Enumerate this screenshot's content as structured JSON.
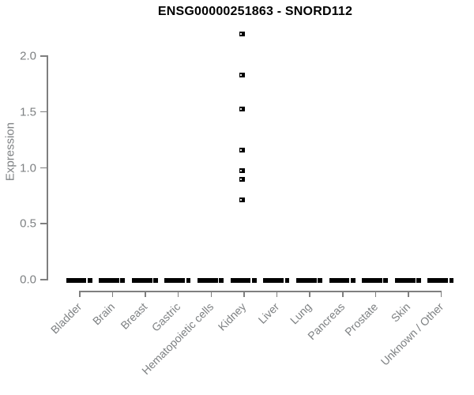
{
  "window": {
    "title": "ENSG00000251863 - SNORD112"
  },
  "chart_data": {
    "type": "boxplot",
    "title": "ENSG00000251863 - SNORD112",
    "ylabel": "Expression",
    "xlabel": "",
    "grid": false,
    "legend": "none",
    "ylim": [
      0,
      2.25
    ],
    "ytick_values": [
      0,
      0.5,
      1,
      1.5,
      2
    ],
    "ytick_labels": [
      "0.0",
      "0.5",
      "1.0",
      "1.5",
      "2.0"
    ],
    "categories": [
      "Bladder",
      "Brain",
      "Breast",
      "Gastric",
      "Hematopoietic cells",
      "Kidney",
      "Liver",
      "Lung",
      "Pancreas",
      "Prostate",
      "Skin",
      "Unknown / Other"
    ],
    "boxes": [
      {
        "category": "Bladder",
        "median": 0,
        "q1": 0,
        "q3": 0,
        "whisker_low": 0,
        "whisker_high": 0
      },
      {
        "category": "Brain",
        "median": 0,
        "q1": 0,
        "q3": 0,
        "whisker_low": 0,
        "whisker_high": 0
      },
      {
        "category": "Breast",
        "median": 0,
        "q1": 0,
        "q3": 0,
        "whisker_low": 0,
        "whisker_high": 0
      },
      {
        "category": "Gastric",
        "median": 0,
        "q1": 0,
        "q3": 0,
        "whisker_low": 0,
        "whisker_high": 0
      },
      {
        "category": "Hematopoietic cells",
        "median": 0,
        "q1": 0,
        "q3": 0,
        "whisker_low": 0,
        "whisker_high": 0
      },
      {
        "category": "Kidney",
        "median": 0,
        "q1": 0,
        "q3": 0,
        "whisker_low": 0,
        "whisker_high": 0
      },
      {
        "category": "Liver",
        "median": 0,
        "q1": 0,
        "q3": 0,
        "whisker_low": 0,
        "whisker_high": 0
      },
      {
        "category": "Lung",
        "median": 0,
        "q1": 0,
        "q3": 0,
        "whisker_low": 0,
        "whisker_high": 0
      },
      {
        "category": "Pancreas",
        "median": 0,
        "q1": 0,
        "q3": 0,
        "whisker_low": 0,
        "whisker_high": 0
      },
      {
        "category": "Prostate",
        "median": 0,
        "q1": 0,
        "q3": 0,
        "whisker_low": 0,
        "whisker_high": 0
      },
      {
        "category": "Skin",
        "median": 0,
        "q1": 0,
        "q3": 0,
        "whisker_low": 0,
        "whisker_high": 0
      },
      {
        "category": "Unknown / Other",
        "median": 0,
        "q1": 0,
        "q3": 0,
        "whisker_low": 0,
        "whisker_high": 0
      }
    ],
    "outliers": [
      {
        "category": "Kidney",
        "values": [
          2.19,
          1.82,
          1.52,
          1.15,
          0.97,
          0.89,
          0.71
        ]
      }
    ],
    "colors": {
      "title": "#000000",
      "axis": "#7f7f7f",
      "text": "#7e8183",
      "box": "#000000",
      "background": "#ffffff"
    }
  }
}
